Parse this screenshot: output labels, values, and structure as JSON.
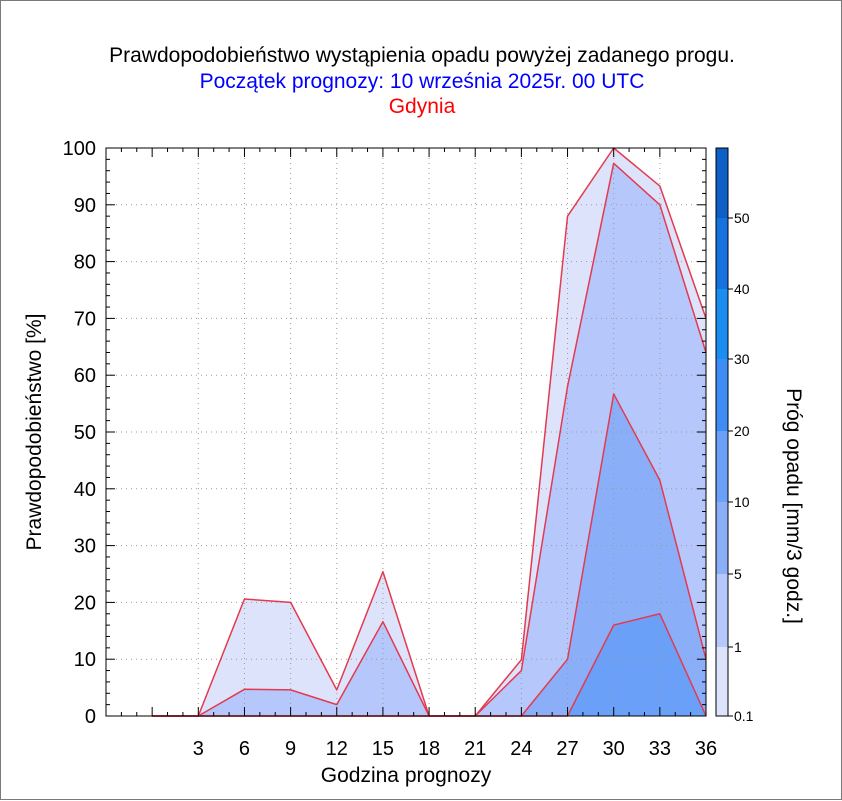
{
  "title": "Prawdopodobieństwo wystąpienia opadu powyżej zadanego progu.",
  "subtitle": "Początek prognozy: 10 września 2025r. 00 UTC",
  "location": "Gdynia",
  "chart_data": {
    "type": "area",
    "xlabel": "Godzina prognozy",
    "ylabel": "Prawdopodobieństwo [%]",
    "x": [
      0,
      3,
      6,
      9,
      12,
      15,
      18,
      21,
      24,
      27,
      30,
      33,
      36
    ],
    "x_tick_labels": [
      "3",
      "6",
      "9",
      "12",
      "15",
      "18",
      "21",
      "24",
      "27",
      "30",
      "33",
      "36"
    ],
    "xlim": [
      -3,
      36
    ],
    "ylim": [
      0,
      100
    ],
    "y_ticks": [
      "0",
      "10",
      "20",
      "30",
      "40",
      "50",
      "60",
      "70",
      "80",
      "90",
      "100"
    ],
    "grid": true,
    "series": [
      {
        "threshold": "0.1",
        "values": [
          0,
          0,
          20.6,
          20,
          4.6,
          25.4,
          0,
          0,
          9.9,
          88,
          100,
          93.3,
          70
        ],
        "color": "#dde3fb"
      },
      {
        "threshold": "1",
        "values": [
          0,
          0,
          4.7,
          4.6,
          2,
          16.6,
          0,
          0,
          8,
          58,
          97.3,
          90,
          64
        ],
        "color": "#b6c8fb"
      },
      {
        "threshold": "5",
        "values": [
          0,
          0,
          0,
          0,
          0,
          0,
          0,
          0,
          0,
          10,
          56.7,
          41.5,
          10
        ],
        "color": "#8aaef8"
      },
      {
        "threshold": "10",
        "values": [
          0,
          0,
          0,
          0,
          0,
          0,
          0,
          0,
          0,
          0,
          16,
          18,
          0
        ],
        "color": "#6aa0f8"
      }
    ],
    "line_color": "#e33a4f",
    "colorbar": {
      "label": "Próg opadu [mm/3 godz.]",
      "tick_labels": [
        "0.1",
        "1",
        "5",
        "10",
        "20",
        "30",
        "40",
        "50"
      ],
      "colors": [
        "#dde3fb",
        "#b6c8fb",
        "#8aaef8",
        "#6aa0f8",
        "#3e8cf5",
        "#1a8ef0",
        "#1572df",
        "#0e5fc8",
        "#0a47a6"
      ]
    }
  }
}
